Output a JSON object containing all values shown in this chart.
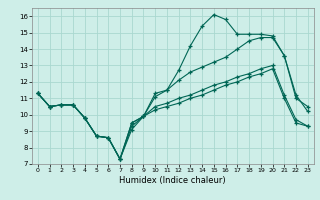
{
  "xlabel": "Humidex (Indice chaleur)",
  "background_color": "#ceeee8",
  "grid_color": "#aad8d0",
  "line_color": "#006655",
  "xlim": [
    -0.5,
    23.5
  ],
  "ylim": [
    7,
    16.5
  ],
  "xticks": [
    0,
    1,
    2,
    3,
    4,
    5,
    6,
    7,
    8,
    9,
    10,
    11,
    12,
    13,
    14,
    15,
    16,
    17,
    18,
    19,
    20,
    21,
    22,
    23
  ],
  "yticks": [
    7,
    8,
    9,
    10,
    11,
    12,
    13,
    14,
    15,
    16
  ],
  "line1_y": [
    11.3,
    10.5,
    10.6,
    10.6,
    9.8,
    8.7,
    8.6,
    7.3,
    9.1,
    9.9,
    11.3,
    11.5,
    12.7,
    14.2,
    15.4,
    16.1,
    15.8,
    14.9,
    14.9,
    14.9,
    14.8,
    13.6,
    11.0,
    10.5
  ],
  "line2_y": [
    11.3,
    10.5,
    10.6,
    10.6,
    9.8,
    8.7,
    8.6,
    7.3,
    9.3,
    9.9,
    11.1,
    11.5,
    12.1,
    12.6,
    12.9,
    13.2,
    13.5,
    14.0,
    14.5,
    14.7,
    14.7,
    13.6,
    11.2,
    10.2
  ],
  "line3_y": [
    11.3,
    10.5,
    10.6,
    10.6,
    9.8,
    8.7,
    8.6,
    7.3,
    9.5,
    9.9,
    10.5,
    10.7,
    11.0,
    11.2,
    11.5,
    11.8,
    12.0,
    12.3,
    12.5,
    12.8,
    13.0,
    11.2,
    9.7,
    9.3
  ],
  "line4_y": [
    11.3,
    10.5,
    10.6,
    10.6,
    9.8,
    8.7,
    8.6,
    7.3,
    9.5,
    9.9,
    10.3,
    10.5,
    10.7,
    11.0,
    11.2,
    11.5,
    11.8,
    12.0,
    12.3,
    12.5,
    12.8,
    11.0,
    9.5,
    9.3
  ]
}
